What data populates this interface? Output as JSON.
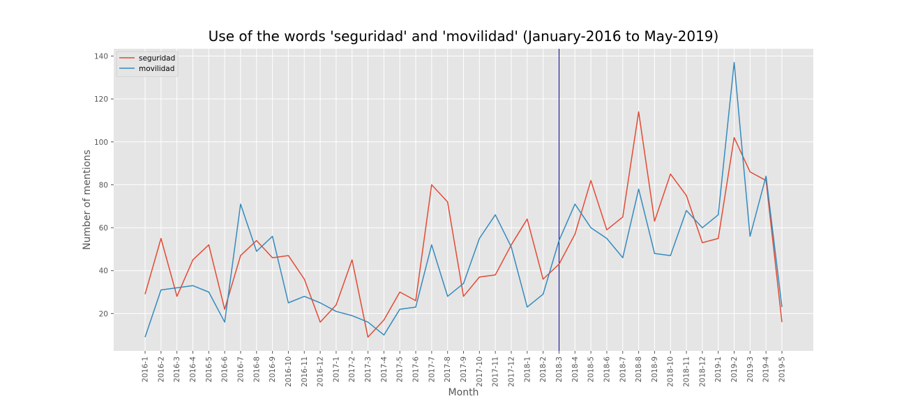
{
  "chart_data": {
    "type": "line",
    "title": "Use of the words 'seguridad' and 'movilidad' (January-2016 to May-2019)",
    "xlabel": "Month",
    "ylabel": "Number of mentions",
    "categories": [
      "2016-1",
      "2016-2",
      "2016-3",
      "2016-4",
      "2016-5",
      "2016-6",
      "2016-7",
      "2016-8",
      "2016-9",
      "2016-10",
      "2016-11",
      "2016-12",
      "2017-1",
      "2017-2",
      "2017-3",
      "2017-4",
      "2017-5",
      "2017-6",
      "2017-7",
      "2017-8",
      "2017-9",
      "2017-10",
      "2017-11",
      "2017-12",
      "2018-1",
      "2018-2",
      "2018-3",
      "2018-4",
      "2018-5",
      "2018-6",
      "2018-7",
      "2018-8",
      "2018-9",
      "2018-10",
      "2018-11",
      "2018-12",
      "2019-1",
      "2019-2",
      "2019-3",
      "2019-4",
      "2019-5"
    ],
    "series": [
      {
        "name": "seguridad",
        "color": "#E24A33",
        "values": [
          29,
          55,
          28,
          45,
          52,
          22,
          47,
          54,
          46,
          47,
          36,
          16,
          24,
          45,
          9,
          17,
          30,
          26,
          80,
          72,
          28,
          37,
          38,
          52,
          64,
          36,
          43,
          57,
          82,
          59,
          65,
          114,
          63,
          85,
          75,
          53,
          55,
          102,
          86,
          82,
          16
        ]
      },
      {
        "name": "movilidad",
        "color": "#348ABD",
        "values": [
          9,
          31,
          32,
          33,
          30,
          16,
          71,
          49,
          56,
          25,
          28,
          25,
          21,
          19,
          16,
          10,
          22,
          23,
          52,
          28,
          34,
          55,
          66,
          51,
          23,
          29,
          54,
          71,
          60,
          55,
          46,
          78,
          48,
          47,
          68,
          60,
          66,
          137,
          56,
          84,
          23
        ]
      }
    ],
    "yticks": [
      20,
      40,
      60,
      80,
      100,
      120,
      140
    ],
    "ylim": [
      2.6,
      143.4
    ],
    "vline": {
      "category": "2018-3",
      "color": "#00008B"
    },
    "grid": true,
    "legend_position": "top-left",
    "colors": {
      "background": "#E5E5E5",
      "grid": "#FFFFFF",
      "tick": "#555555"
    }
  }
}
